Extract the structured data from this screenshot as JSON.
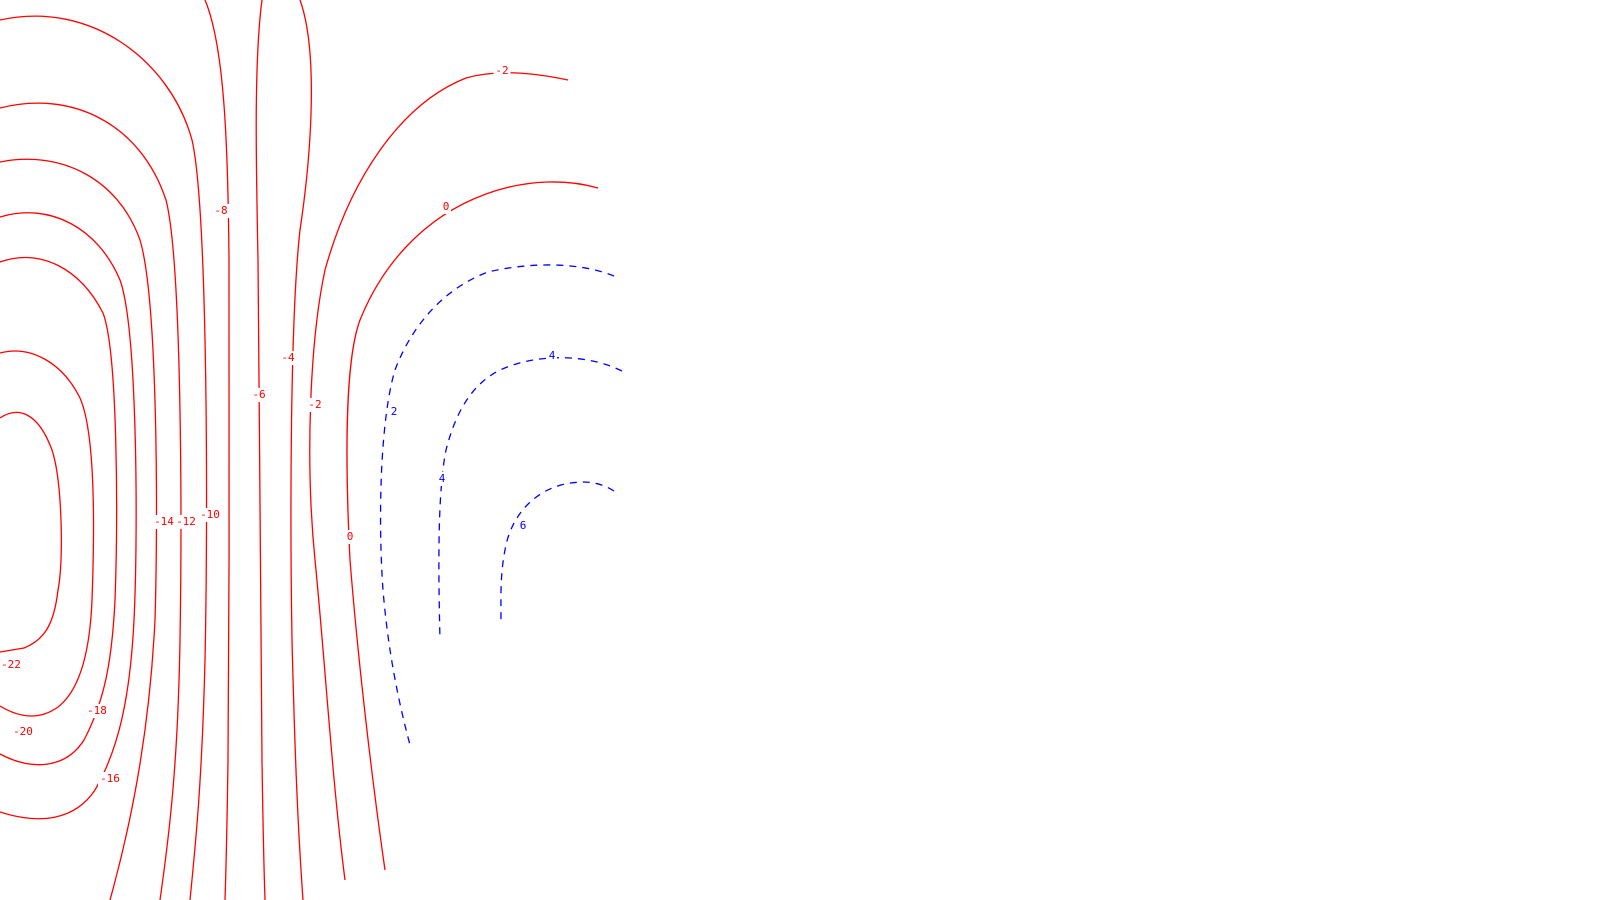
{
  "chart_data": {
    "type": "contour",
    "title": "",
    "xlabel": "",
    "ylabel": "",
    "negative_style": {
      "color": "#ff0000",
      "line": "solid"
    },
    "positive_style": {
      "color": "#0000ff",
      "line": "dashed"
    },
    "levels": [
      {
        "level": -22,
        "label": "-22",
        "sign": "neg"
      },
      {
        "level": -20,
        "label": "-20",
        "sign": "neg"
      },
      {
        "level": -18,
        "label": "-18",
        "sign": "neg"
      },
      {
        "level": -16,
        "label": "-16",
        "sign": "neg"
      },
      {
        "level": -14,
        "label": "-14",
        "sign": "neg"
      },
      {
        "level": -12,
        "label": "-12",
        "sign": "neg"
      },
      {
        "level": -10,
        "label": "-10",
        "sign": "neg"
      },
      {
        "level": -8,
        "label": "-8",
        "sign": "neg"
      },
      {
        "level": -6,
        "label": "-6",
        "sign": "neg"
      },
      {
        "level": -4,
        "label": "-4",
        "sign": "neg"
      },
      {
        "level": -2,
        "label": "-2",
        "sign": "neg"
      },
      {
        "level": 0,
        "label": "0",
        "sign": "neg"
      },
      {
        "level": 2,
        "label": "2",
        "sign": "pos"
      },
      {
        "level": 4,
        "label": "4",
        "sign": "pos"
      },
      {
        "level": 6,
        "label": "6",
        "sign": "pos"
      }
    ]
  }
}
